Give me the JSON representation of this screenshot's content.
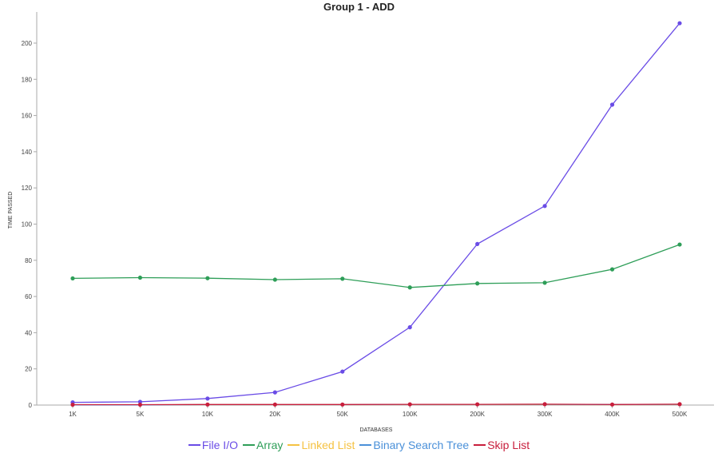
{
  "chart_data": {
    "type": "line",
    "title": "Group 1 - ADD",
    "xlabel": "DATABASES",
    "ylabel": "TIME PASSED",
    "categories": [
      "1K",
      "5K",
      "10K",
      "20K",
      "50K",
      "100K",
      "200K",
      "300K",
      "400K",
      "500K"
    ],
    "ylim": [
      0,
      215
    ],
    "yticks": [
      0,
      20,
      40,
      60,
      80,
      100,
      120,
      140,
      160,
      180,
      200
    ],
    "grid": false,
    "legend_position": "bottom",
    "series": [
      {
        "name": "File I/O",
        "color": "#6a4ce6",
        "markers": true,
        "values": [
          1.5,
          1.8,
          3.6,
          7,
          18.5,
          43,
          89,
          110,
          166,
          211
        ]
      },
      {
        "name": "Array",
        "color": "#2e9e58",
        "markers": true,
        "values": [
          70,
          70.4,
          70.1,
          69.3,
          69.8,
          65,
          67.2,
          67.6,
          75,
          88.7
        ]
      },
      {
        "name": "Linked List",
        "color": "#f5c242",
        "markers": false,
        "values": [
          0.1,
          0.1,
          0.2,
          0.2,
          0.2,
          0.3,
          0.3,
          0.3,
          0.2,
          0.3
        ]
      },
      {
        "name": "Binary Search Tree",
        "color": "#4a90d9",
        "markers": false,
        "values": [
          0.1,
          0.1,
          0.2,
          0.2,
          0.2,
          0.4,
          0.4,
          0.4,
          0.3,
          0.4
        ]
      },
      {
        "name": "Skip List",
        "color": "#c81e3c",
        "markers": true,
        "values": [
          0.2,
          0.2,
          0.3,
          0.3,
          0.3,
          0.4,
          0.4,
          0.5,
          0.3,
          0.5
        ]
      }
    ]
  }
}
